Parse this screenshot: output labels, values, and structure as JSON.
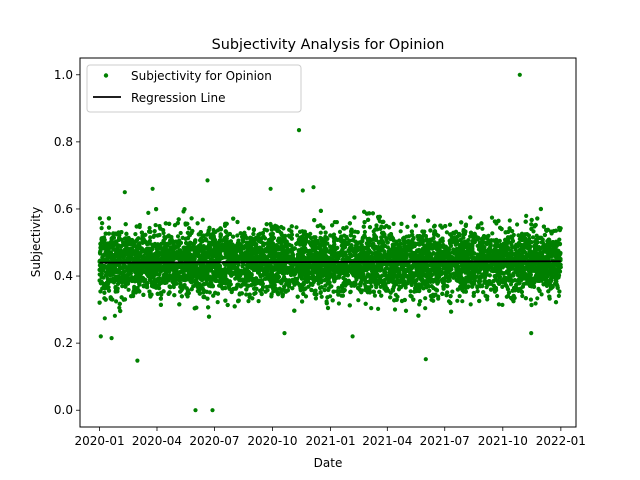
{
  "chart_data": {
    "type": "scatter",
    "title": "Subjectivity Analysis for Opinion",
    "xlabel": "Date",
    "ylabel": "Subjectivity",
    "x_range": [
      "2019-12-01",
      "2022-01-25"
    ],
    "ylim": [
      -0.05,
      1.05
    ],
    "x_ticks": [
      "2020-01",
      "2020-04",
      "2020-07",
      "2020-10",
      "2021-01",
      "2021-04",
      "2021-07",
      "2021-10",
      "2022-01"
    ],
    "y_ticks": [
      "0.0",
      "0.2",
      "0.4",
      "0.6",
      "0.8",
      "1.0"
    ],
    "legend_position": "top-left",
    "grid": false,
    "series": [
      {
        "name": "Subjectivity for Opinion",
        "kind": "points",
        "color": "#008000",
        "bulk_description": "dense daily cloud centered near 0.44, roughly spanning 0.30–0.56",
        "notable_points": [
          {
            "x": "2021-10-28",
            "y": 1.0
          },
          {
            "x": "2020-11-12",
            "y": 0.835
          },
          {
            "x": "2020-06-20",
            "y": 0.685
          },
          {
            "x": "2020-03-25",
            "y": 0.66
          },
          {
            "x": "2020-12-05",
            "y": 0.665
          },
          {
            "x": "2020-02-10",
            "y": 0.65
          },
          {
            "x": "2020-09-28",
            "y": 0.66
          },
          {
            "x": "2020-11-18",
            "y": 0.655
          },
          {
            "x": "2020-03-01",
            "y": 0.148
          },
          {
            "x": "2021-06-01",
            "y": 0.152
          },
          {
            "x": "2020-01-03",
            "y": 0.22
          },
          {
            "x": "2020-01-20",
            "y": 0.215
          },
          {
            "x": "2020-10-20",
            "y": 0.23
          },
          {
            "x": "2021-02-05",
            "y": 0.22
          },
          {
            "x": "2021-11-15",
            "y": 0.23
          },
          {
            "x": "2020-06-01",
            "y": 0.0
          },
          {
            "x": "2020-06-28",
            "y": 0.0
          }
        ]
      },
      {
        "name": "Regression Line",
        "kind": "line",
        "color": "#000000",
        "points": [
          {
            "x": "2020-01-01",
            "y": 0.44
          },
          {
            "x": "2022-01-01",
            "y": 0.444
          }
        ]
      }
    ]
  }
}
